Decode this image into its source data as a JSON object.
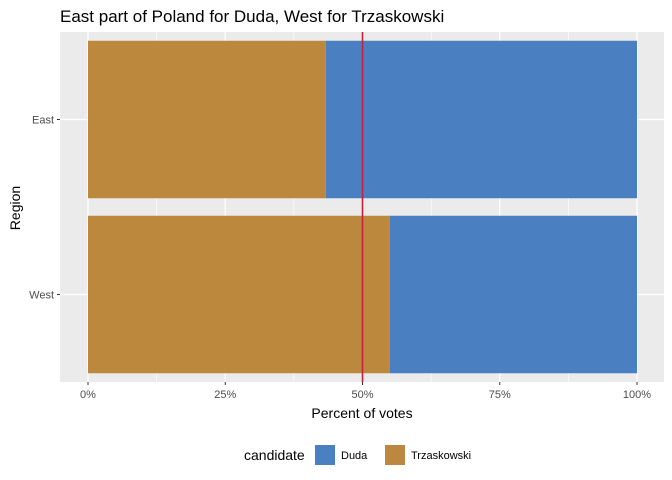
{
  "chart_data": {
    "type": "bar",
    "orientation": "horizontal",
    "stacked": true,
    "title": "East part of Poland for Duda, West for Trzaskowski",
    "xlabel": "Percent of votes",
    "ylabel": "Region",
    "categories": [
      "East",
      "West"
    ],
    "xlim": [
      0,
      1
    ],
    "xticks": [
      0,
      0.25,
      0.5,
      0.75,
      1
    ],
    "xtick_labels": [
      "0%",
      "25%",
      "50%",
      "75%",
      "100%"
    ],
    "series": [
      {
        "name": "Trzaskowski",
        "values": [
          0.433,
          0.55
        ],
        "color": "#BC883D"
      },
      {
        "name": "Duda",
        "values": [
          0.567,
          0.45
        ],
        "color": "#4A7FC1"
      }
    ],
    "reference_line": {
      "value": 0.5,
      "color": "#C8203A"
    },
    "grid": true,
    "legend": {
      "title": "candidate",
      "position": "bottom",
      "entries": [
        "Duda",
        "Trzaskowski"
      ]
    }
  }
}
